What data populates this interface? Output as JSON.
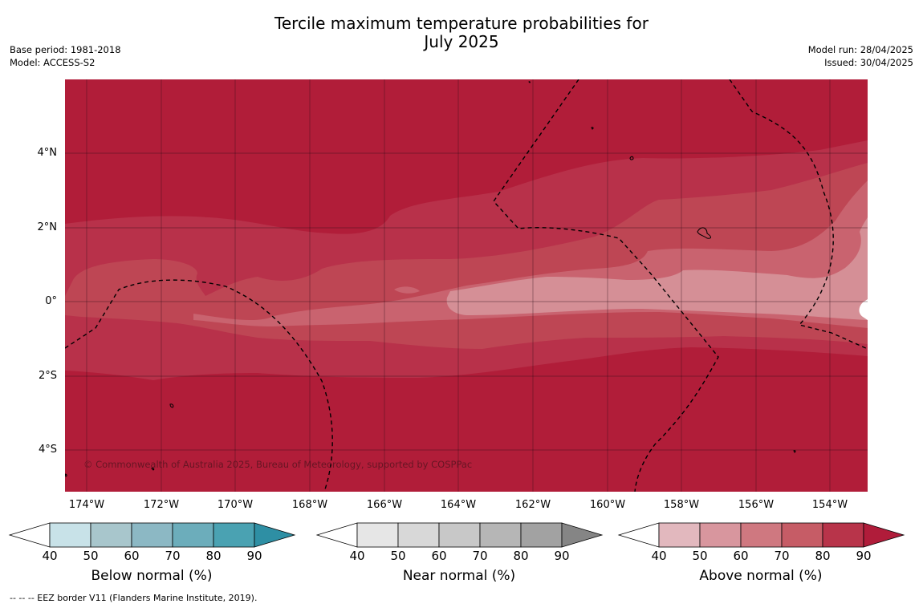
{
  "title_line1": "Tercile maximum temperature probabilities for",
  "title_line2": "July 2025",
  "base_period": "Base period: 1981-2018",
  "model": "Model: ACCESS-S2",
  "model_run": "Model run: 28/04/2025",
  "issued": "Issued: 30/04/2025",
  "copyright": "© Commonwealth of Australia 2025, Bureau of Meteorology, supported by COSPPac",
  "footnote": "--  --  -- EEZ border V11 (Flanders Marine Institute, 2019).",
  "lat_labels": [
    "4°N",
    "2°N",
    "0°",
    "2°S",
    "4°S"
  ],
  "lon_labels": [
    "174°W",
    "172°W",
    "170°W",
    "168°W",
    "166°W",
    "164°W",
    "162°W",
    "160°W",
    "158°W",
    "156°W",
    "154°W"
  ],
  "legends": [
    {
      "label": "Below normal (%)",
      "ticks": [
        "40",
        "50",
        "60",
        "70",
        "80",
        "90"
      ],
      "colors": [
        "#c8e2e8",
        "#a8c6cc",
        "#8cb8c4",
        "#6cadbb",
        "#4aa2b2",
        "#2e8fa4"
      ]
    },
    {
      "label": "Near normal (%)",
      "ticks": [
        "40",
        "50",
        "60",
        "70",
        "80",
        "90"
      ],
      "colors": [
        "#e6e6e6",
        "#d8d8d8",
        "#c8c8c8",
        "#b6b6b6",
        "#a2a2a2",
        "#858585"
      ]
    },
    {
      "label": "Above normal (%)",
      "ticks": [
        "40",
        "50",
        "60",
        "70",
        "80",
        "90"
      ],
      "colors": [
        "#e2b8be",
        "#d8969e",
        "#cf7880",
        "#c65c66",
        "#b8344a",
        "#b01c3a"
      ]
    }
  ],
  "map_colors": {
    "p90": "#b11d39",
    "p80": "#b8314a",
    "p70": "#be4654",
    "p60": "#c9636f",
    "p50": "#d58f96"
  }
}
